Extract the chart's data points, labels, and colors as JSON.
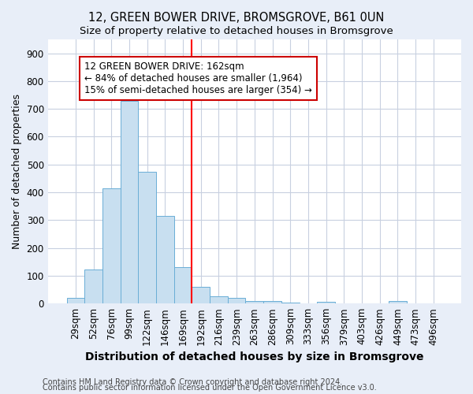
{
  "title": "12, GREEN BOWER DRIVE, BROMSGROVE, B61 0UN",
  "subtitle": "Size of property relative to detached houses in Bromsgrove",
  "xlabel": "Distribution of detached houses by size in Bromsgrove",
  "ylabel": "Number of detached properties",
  "bar_color": "#c8dff0",
  "bar_edge_color": "#6aaed6",
  "categories": [
    "29sqm",
    "52sqm",
    "76sqm",
    "99sqm",
    "122sqm",
    "146sqm",
    "169sqm",
    "192sqm",
    "216sqm",
    "239sqm",
    "263sqm",
    "286sqm",
    "309sqm",
    "333sqm",
    "356sqm",
    "379sqm",
    "403sqm",
    "426sqm",
    "449sqm",
    "473sqm",
    "496sqm"
  ],
  "values": [
    20,
    122,
    415,
    730,
    475,
    315,
    130,
    60,
    25,
    20,
    8,
    8,
    3,
    0,
    5,
    0,
    0,
    0,
    8,
    0,
    0
  ],
  "vline_x": 6.5,
  "vline_color": "red",
  "annotation_text": "12 GREEN BOWER DRIVE: 162sqm\n← 84% of detached houses are smaller (1,964)\n15% of semi-detached houses are larger (354) →",
  "annotation_box_color": "white",
  "annotation_box_edge_color": "#cc0000",
  "ylim": [
    0,
    950
  ],
  "yticks": [
    0,
    100,
    200,
    300,
    400,
    500,
    600,
    700,
    800,
    900
  ],
  "footnote1": "Contains HM Land Registry data © Crown copyright and database right 2024.",
  "footnote2": "Contains public sector information licensed under the Open Government Licence v3.0.",
  "background_color": "#e8eef8",
  "plot_bg_color": "white",
  "grid_color": "#c8d0e0",
  "title_fontsize": 10.5,
  "subtitle_fontsize": 9.5,
  "ylabel_fontsize": 9,
  "xlabel_fontsize": 10,
  "tick_fontsize": 8.5,
  "annot_fontsize": 8.5,
  "footnote_fontsize": 7
}
